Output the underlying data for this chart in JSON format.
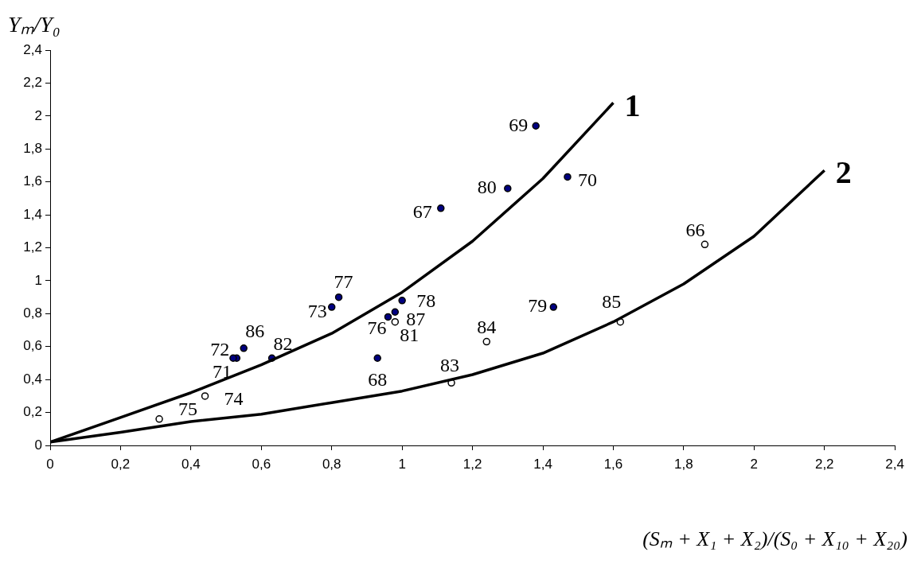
{
  "chart_data": {
    "type": "scatter",
    "ylabel": "Yₘ/Y₀",
    "xlabel": "(Sₘ + X₁ + X₂)/(S₀ + X₁₀ + X₂₀)",
    "xlim": [
      0,
      2.4
    ],
    "xticks": [
      0,
      {
        "value": 0.2,
        "label": "0,2"
      },
      {
        "value": 0.4,
        "label": "0,4"
      },
      {
        "value": 0.6,
        "label": "0,6"
      },
      {
        "value": 0.8,
        "label": "0,8"
      },
      1,
      {
        "value": 1.2,
        "label": "1,2"
      },
      {
        "value": 1.4,
        "label": "1,4"
      },
      {
        "value": 1.6,
        "label": "1,6"
      },
      {
        "value": 1.8,
        "label": "1,8"
      },
      2,
      {
        "value": 2.2,
        "label": "2,2"
      },
      {
        "value": 2.4,
        "label": "2,4"
      }
    ],
    "ylim": [
      0,
      2.4
    ],
    "yticks": [
      0,
      {
        "value": 0.2,
        "label": "0,2"
      },
      {
        "value": 0.4,
        "label": "0,4"
      },
      {
        "value": 0.6,
        "label": "0,6"
      },
      {
        "value": 0.8,
        "label": "0,8"
      },
      1,
      {
        "value": 1.2,
        "label": "1,2"
      },
      {
        "value": 1.4,
        "label": "1,4"
      },
      {
        "value": 1.6,
        "label": "1,6"
      },
      {
        "value": 1.8,
        "label": "1,8"
      },
      2,
      {
        "value": 2.2,
        "label": "2,2"
      },
      {
        "value": 2.4,
        "label": "2,4"
      }
    ],
    "grid": false,
    "legend": false,
    "marker": "circle",
    "series": [
      {
        "name": "1",
        "type": "line",
        "color": "#000000",
        "marker": "none",
        "x": [
          0,
          0.2,
          0.4,
          0.6,
          0.8,
          1.0,
          1.2,
          1.4,
          1.6
        ],
        "values": [
          0.02,
          0.17,
          0.32,
          0.49,
          0.68,
          0.93,
          1.24,
          1.62,
          2.08
        ]
      },
      {
        "name": "2",
        "type": "line",
        "color": "#000000",
        "marker": "none",
        "x": [
          0,
          0.2,
          0.4,
          0.6,
          0.8,
          1.0,
          1.2,
          1.4,
          1.6,
          1.8,
          2.0,
          2.2
        ],
        "values": [
          0.02,
          0.08,
          0.145,
          0.19,
          0.26,
          0.33,
          0.43,
          0.56,
          0.75,
          0.98,
          1.27,
          1.67
        ]
      },
      {
        "color": "#000080",
        "x": [
          1.38,
          1.3,
          1.47,
          1.11,
          0.82,
          0.8,
          0.55,
          0.53,
          0.52,
          0.63,
          0.93,
          0.96,
          0.98,
          1.0,
          1.43
        ],
        "values": [
          1.94,
          1.56,
          1.63,
          1.44,
          0.9,
          0.84,
          0.59,
          0.53,
          0.53,
          0.53,
          0.53,
          0.78,
          0.81,
          0.88,
          0.84
        ]
      },
      {
        "color": "#ffffff",
        "x": [
          1.86,
          1.62,
          1.24,
          1.14,
          0.98,
          0.44,
          0.31
        ],
        "values": [
          1.22,
          0.75,
          0.63,
          0.38,
          0.75,
          0.3,
          0.16
        ]
      }
    ],
    "annotations": [
      {
        "text": "69",
        "x": 1.38,
        "y": 1.94
      },
      {
        "text": "80",
        "x": 1.3,
        "y": 1.56
      },
      {
        "text": "70",
        "x": 1.47,
        "y": 1.63
      },
      {
        "text": "67",
        "x": 1.11,
        "y": 1.44
      },
      {
        "text": "77",
        "x": 0.82,
        "y": 0.9
      },
      {
        "text": "73",
        "x": 0.8,
        "y": 0.84
      },
      {
        "text": "86",
        "x": 0.55,
        "y": 0.59
      },
      {
        "text": "72",
        "x": 0.53,
        "y": 0.53
      },
      {
        "text": "71",
        "x": 0.52,
        "y": 0.53
      },
      {
        "text": "82",
        "x": 0.63,
        "y": 0.53
      },
      {
        "text": "68",
        "x": 0.93,
        "y": 0.53
      },
      {
        "text": "76",
        "x": 0.96,
        "y": 0.78
      },
      {
        "text": "87",
        "x": 0.98,
        "y": 0.81
      },
      {
        "text": "78",
        "x": 1.0,
        "y": 0.88
      },
      {
        "text": "79",
        "x": 1.43,
        "y": 0.84
      },
      {
        "text": "66",
        "x": 1.86,
        "y": 1.22
      },
      {
        "text": "85",
        "x": 1.62,
        "y": 0.75
      },
      {
        "text": "84",
        "x": 1.24,
        "y": 0.63
      },
      {
        "text": "83",
        "x": 1.14,
        "y": 0.38
      },
      {
        "text": "81",
        "x": 0.98,
        "y": 0.75
      },
      {
        "text": "74",
        "x": 0.44,
        "y": 0.3
      },
      {
        "text": "75",
        "x": 0.31,
        "y": 0.16
      }
    ]
  }
}
